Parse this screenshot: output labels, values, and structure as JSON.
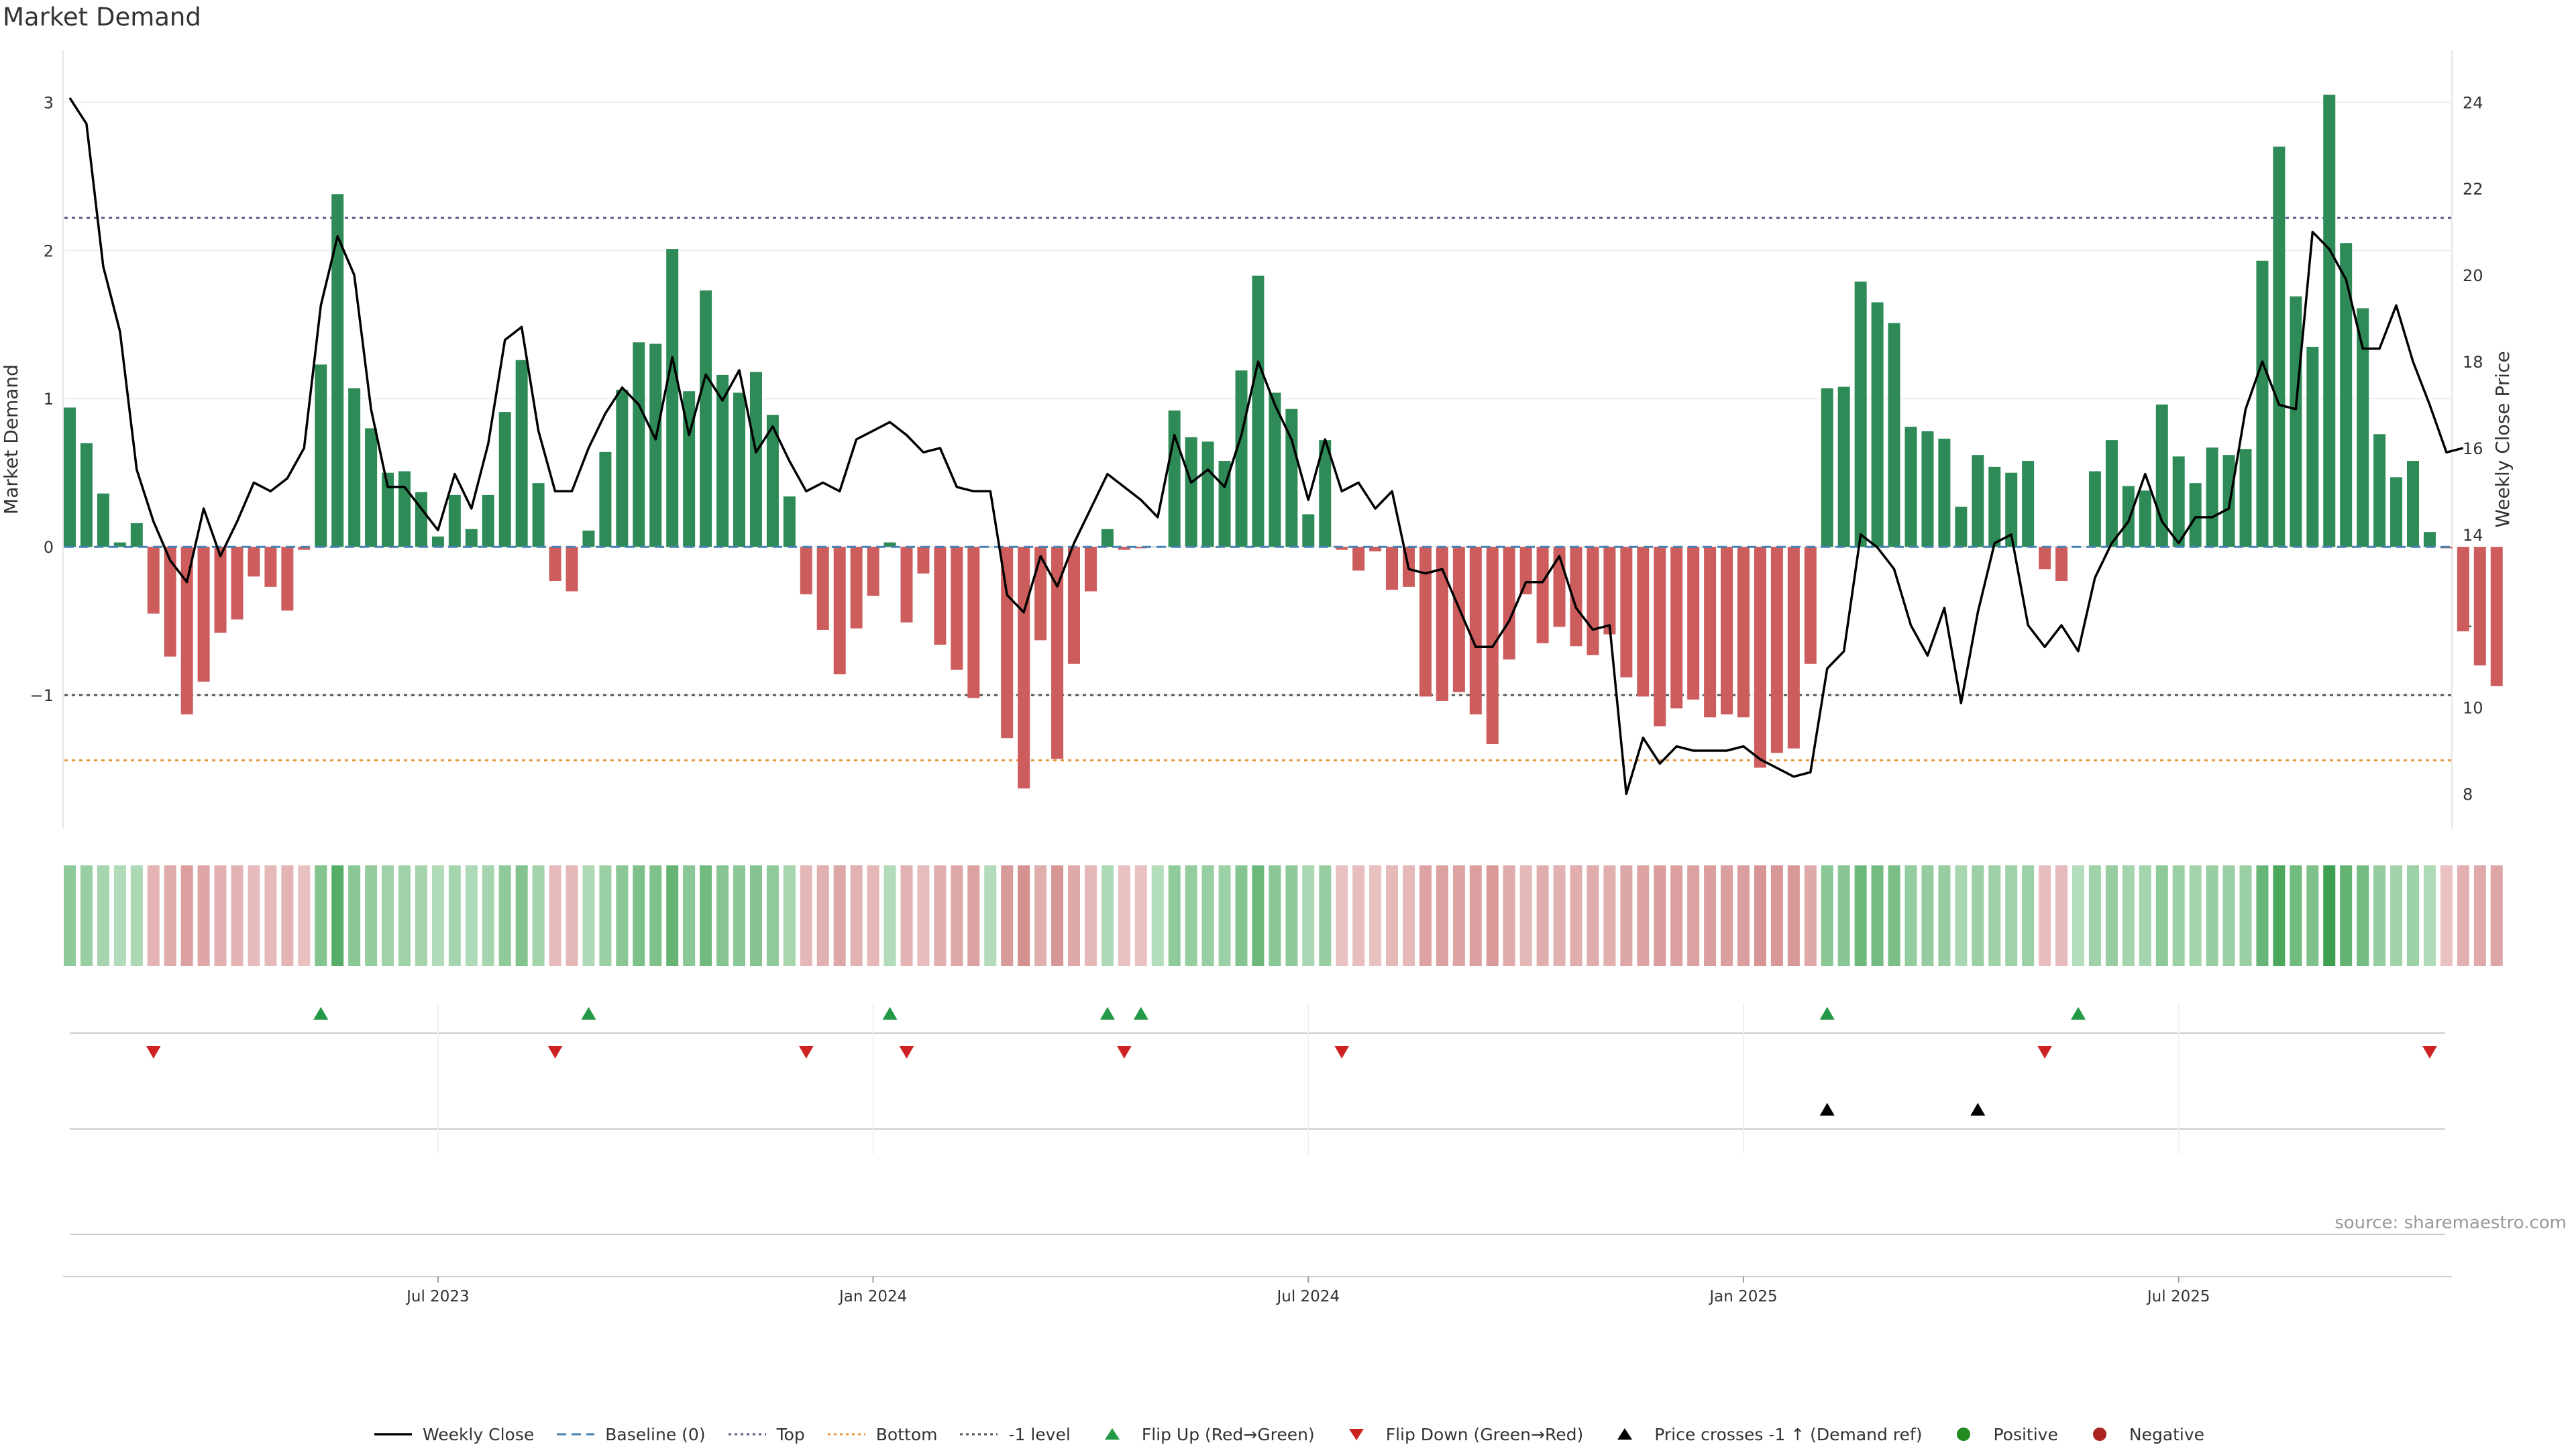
{
  "title": "Market Demand",
  "source": "source: sharemaestro.com",
  "colors": {
    "positive": "#2e8b57",
    "negative": "#cd5c5c",
    "price": "#000000",
    "baseline": "#4682b4",
    "top": "#555a8a",
    "bottom": "#e8953a",
    "minus_one": "#555555",
    "flip_up": "#229944",
    "flip_down": "#cc2222",
    "cross": "#000000",
    "positive_dot": "#228b22",
    "negative_dot": "#aa2222"
  },
  "legend": [
    {
      "label": "Weekly Close",
      "symbol": "line-solid",
      "color": "#000000"
    },
    {
      "label": "Baseline (0)",
      "symbol": "line-dashed",
      "color": "#4682b4"
    },
    {
      "label": "Top",
      "symbol": "line-dotted",
      "color": "#555a8a"
    },
    {
      "label": "Bottom",
      "symbol": "line-dotted",
      "color": "#e8953a"
    },
    {
      "label": "-1 level",
      "symbol": "line-dotted",
      "color": "#555555"
    },
    {
      "label": "Flip Up (Red→Green)",
      "symbol": "triangle-up",
      "color": "#229944"
    },
    {
      "label": "Flip Down (Green→Red)",
      "symbol": "triangle-down",
      "color": "#cc2222"
    },
    {
      "label": "Price crosses -1 ↑ (Demand ref)",
      "symbol": "triangle-up",
      "color": "#000000"
    },
    {
      "label": "Positive",
      "symbol": "circle",
      "color": "#228b22"
    },
    {
      "label": "Negative",
      "symbol": "circle",
      "color": "#aa2222"
    }
  ],
  "chart_data": {
    "type": "bar",
    "title": "Market Demand",
    "ylabel": "Market Demand",
    "y2label": "Weekly Close Price",
    "ylim": [
      -1.9,
      3.35
    ],
    "yticks": [
      -1,
      0,
      1,
      2,
      3
    ],
    "y2lim": [
      7.2,
      25.2
    ],
    "y2ticks": [
      8,
      10,
      12,
      14,
      16,
      18,
      20,
      22,
      24
    ],
    "x_start_week": 0,
    "x_end_week": 143,
    "xtick_labels": [
      {
        "label": "Jul 2023",
        "week": 22
      },
      {
        "label": "Jan 2024",
        "week": 48
      },
      {
        "label": "Jul 2024",
        "week": 74
      },
      {
        "label": "Jan 2025",
        "week": 100
      },
      {
        "label": "Jul 2025",
        "week": 126
      }
    ],
    "levels": {
      "top": 2.22,
      "bottom": -1.44,
      "minus_one": -1.0,
      "baseline": 0
    },
    "demand": [
      0.94,
      0.7,
      0.36,
      0.03,
      0.16,
      -0.45,
      -0.74,
      -1.13,
      -0.91,
      -0.58,
      -0.49,
      -0.2,
      -0.27,
      -0.43,
      -0.02,
      1.23,
      2.38,
      1.07,
      0.8,
      0.5,
      0.51,
      0.37,
      0.07,
      0.35,
      0.12,
      0.35,
      0.91,
      1.26,
      0.43,
      -0.23,
      -0.3,
      0.11,
      0.64,
      1.06,
      1.38,
      1.37,
      2.01,
      1.05,
      1.73,
      1.16,
      1.04,
      1.18,
      0.89,
      0.34,
      -0.32,
      -0.56,
      -0.86,
      -0.55,
      -0.33,
      0.03,
      -0.51,
      -0.18,
      -0.66,
      -0.83,
      -1.02,
      0.0,
      -1.29,
      -1.63,
      -0.63,
      -1.43,
      -0.79,
      -0.3,
      0.12,
      -0.02,
      -0.01,
      0.0,
      0.92,
      0.74,
      0.71,
      0.58,
      1.19,
      1.83,
      1.04,
      0.93,
      0.22,
      0.72,
      -0.02,
      -0.16,
      -0.03,
      -0.29,
      -0.27,
      -1.01,
      -1.04,
      -0.98,
      -1.13,
      -1.33,
      -0.76,
      -0.32,
      -0.65,
      -0.54,
      -0.67,
      -0.73,
      -0.59,
      -0.88,
      -1.01,
      -1.21,
      -1.09,
      -1.03,
      -1.15,
      -1.13,
      -1.15,
      -1.49,
      -1.39,
      -1.36,
      -0.79,
      1.07,
      1.08,
      1.79,
      1.65,
      1.51,
      0.81,
      0.78,
      0.73,
      0.27,
      0.62,
      0.54,
      0.5,
      0.58,
      -0.15,
      -0.23,
      0.0,
      0.51,
      0.72,
      0.41,
      0.38,
      0.96,
      0.61,
      0.43,
      0.67,
      0.62,
      0.66,
      1.93,
      2.7,
      1.69,
      1.35,
      3.05,
      2.05,
      1.61,
      0.76,
      0.47,
      0.58,
      0.1,
      -0.01,
      -0.57,
      -0.8,
      -0.94
    ],
    "price": [
      24.1,
      23.5,
      20.2,
      18.7,
      15.5,
      14.3,
      13.4,
      12.9,
      14.6,
      13.5,
      14.3,
      15.2,
      15.0,
      15.3,
      16.0,
      19.3,
      20.9,
      20.0,
      16.9,
      15.1,
      15.1,
      14.6,
      14.1,
      15.4,
      14.6,
      16.1,
      18.5,
      18.8,
      16.4,
      15.0,
      15.0,
      16.0,
      16.8,
      17.4,
      17.0,
      16.2,
      18.1,
      16.3,
      17.7,
      17.1,
      17.8,
      15.9,
      16.5,
      15.7,
      15.0,
      15.2,
      15.0,
      16.2,
      16.4,
      16.6,
      16.3,
      15.9,
      16.0,
      15.1,
      15.0,
      15.0,
      12.6,
      12.2,
      13.5,
      12.8,
      13.8,
      14.6,
      15.4,
      15.1,
      14.8,
      14.4,
      16.3,
      15.2,
      15.5,
      15.1,
      16.3,
      18.0,
      17.0,
      16.2,
      14.8,
      16.2,
      15.0,
      15.2,
      14.6,
      15.0,
      13.2,
      13.1,
      13.2,
      12.3,
      11.4,
      11.4,
      12.0,
      12.9,
      12.9,
      13.5,
      12.3,
      11.8,
      11.9,
      8.0,
      9.3,
      8.7,
      9.1,
      9.0,
      9.0,
      9.0,
      9.1,
      8.8,
      8.6,
      8.4,
      8.5,
      10.9,
      11.3,
      14.0,
      13.7,
      13.2,
      11.9,
      11.2,
      12.3,
      10.1,
      12.2,
      13.8,
      14.0,
      11.9,
      11.4,
      11.9,
      11.3,
      13.0,
      13.8,
      14.3,
      15.4,
      14.3,
      13.8,
      14.4,
      14.4,
      14.6,
      16.9,
      18.0,
      17.0,
      16.9,
      21.0,
      20.6,
      19.9,
      18.3,
      18.3,
      19.3,
      18.0,
      17.0,
      15.9,
      16.0
    ],
    "flip_up_weeks": [
      15,
      31,
      49,
      62,
      64,
      105,
      120
    ],
    "flip_down_weeks": [
      5,
      29,
      44,
      50,
      63,
      76,
      118,
      141
    ],
    "cross_up_weeks": [
      105,
      114
    ]
  }
}
